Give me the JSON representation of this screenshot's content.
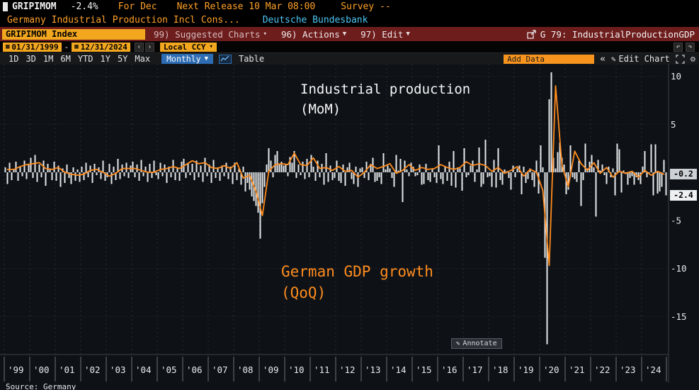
{
  "colors": {
    "amber": "#f2a71f",
    "orange_text": "#ffa028",
    "cyan": "#4dc6f4",
    "maroon": "#6e1d1d",
    "blue": "#2e6db4",
    "bar": "#e5e8ea",
    "line": "#ff8c1e"
  },
  "icons": {
    "caret_down": "▾",
    "caret_down_solid": "▼",
    "calendar": "▦",
    "prev": "‹",
    "next": "›",
    "undo": "↶",
    "redo": "↷",
    "collapse": "«",
    "pencil": "✎",
    "gear": "⚙"
  },
  "header": {
    "ticker": "GRIPIMOM",
    "last_change": "-2.4%",
    "period_label": "For Dec",
    "next_release": "Next Release 10 Mar 08:00",
    "survey": "Survey --",
    "description": "Germany Industrial Production Incl Cons...",
    "source_name": "Deutsche Bundesbank"
  },
  "menu_bar": {
    "security_field": "GRIPIMOM Index",
    "suggested_charts": "99) Suggested Charts",
    "actions": "96) Actions",
    "edit": "97) Edit",
    "chart_id": "G 79: IndustrialProductionGDP"
  },
  "range_bar": {
    "start_date": "01/31/1999",
    "to_separator": "-",
    "end_date": "12/31/2024",
    "currency": "Local CCY"
  },
  "toolbar": {
    "periods": [
      "1D",
      "3D",
      "1M",
      "6M",
      "YTD",
      "1Y",
      "5Y",
      "Max"
    ],
    "frequency": "Monthly",
    "table": "Table",
    "add_data": "Add Data",
    "collapse": "«",
    "edit_chart": "Edit Chart"
  },
  "chart": {
    "annotations": {
      "bars_line1": "Industrial production",
      "bars_line2": "(MoM)",
      "line_line1": "German GDP growth",
      "line_line2": "(QoQ)"
    },
    "annotate_button": "Annotate",
    "last_values": [
      {
        "label": "-0.2",
        "value": -0.2,
        "bg": "#ccd1d6"
      },
      {
        "label": "-2.4",
        "value": -2.4,
        "bg": "#eef0f2"
      }
    ],
    "source": "Source: Germany"
  },
  "chart_data": {
    "type": "bar+line",
    "title": "",
    "xlabel": "",
    "ylabel": "%",
    "ylim": [
      -18.7,
      11.3
    ],
    "x_years": [
      1999,
      2024
    ],
    "x_labels": [
      "'99",
      "'00",
      "'01",
      "'02",
      "'03",
      "'04",
      "'05",
      "'06",
      "'07",
      "'08",
      "'09",
      "'10",
      "'11",
      "'12",
      "'13",
      "'14",
      "'15",
      "'16",
      "'17",
      "'18",
      "'19",
      "'20",
      "'21",
      "'22",
      "'23",
      "'24"
    ],
    "y_ticks": [
      10,
      5,
      -5,
      -10,
      -15
    ],
    "y_grid": [
      10,
      5,
      0,
      -5,
      -10,
      -15
    ],
    "legend_position": "annotations-in-plot",
    "grid": true,
    "series": [
      {
        "name": "Industrial production (MoM)",
        "type": "bar",
        "color": "#e5e8ea",
        "frequency": "monthly",
        "start": "1999-01",
        "last_value": -2.4,
        "values": [
          0.5,
          -1.2,
          1.0,
          -0.8,
          0.3,
          1.1,
          -0.9,
          0.6,
          -0.4,
          1.2,
          -0.7,
          0.9,
          1.5,
          -0.6,
          1.8,
          -1.0,
          0.8,
          -0.5,
          1.2,
          -1.4,
          0.9,
          0.4,
          -0.8,
          1.1,
          -0.9,
          0.7,
          -1.5,
          0.4,
          -1.1,
          0.8,
          -0.6,
          -1.2,
          0.5,
          -0.9,
          0.3,
          -1.0,
          0.6,
          -0.8,
          1.0,
          -0.5,
          0.7,
          -1.1,
          0.9,
          -0.3,
          0.5,
          -0.7,
          1.2,
          -0.9,
          -0.5,
          0.9,
          -1.2,
          0.6,
          -0.8,
          1.4,
          -0.7,
          0.8,
          -0.4,
          1.0,
          -0.6,
          0.7,
          1.1,
          -0.5,
          0.8,
          -0.9,
          1.3,
          -0.4,
          0.6,
          -1.0,
          0.9,
          -0.6,
          1.2,
          -0.3,
          -0.7,
          1.0,
          -0.4,
          0.8,
          -1.1,
          0.6,
          -0.5,
          1.3,
          -0.8,
          0.5,
          -0.9,
          1.1,
          1.4,
          -0.6,
          1.0,
          -0.3,
          0.9,
          -0.8,
          1.2,
          -0.5,
          0.7,
          -1.0,
          1.5,
          -0.4,
          0.8,
          -1.1,
          1.3,
          -0.6,
          0.5,
          -0.9,
          0.7,
          -0.4,
          1.0,
          -0.7,
          0.6,
          -1.2,
          1.0,
          -0.8,
          0.4,
          -1.3,
          0.6,
          -2.0,
          -1.1,
          -1.8,
          -2.5,
          -3.0,
          -3.5,
          -4.2,
          -6.9,
          -3.2,
          -1.5,
          0.8,
          2.5,
          1.2,
          -0.5,
          1.8,
          2.2,
          0.9,
          1.1,
          0.7,
          0.9,
          -0.4,
          1.6,
          1.0,
          2.2,
          -0.6,
          0.8,
          -0.3,
          1.1,
          -0.7,
          1.4,
          -0.5,
          1.8,
          0.6,
          -0.9,
          1.2,
          -0.5,
          0.9,
          -1.3,
          2.0,
          -1.0,
          0.7,
          -0.8,
          -0.6,
          1.2,
          -0.9,
          -1.1,
          0.8,
          -1.4,
          0.5,
          1.0,
          -0.7,
          -1.2,
          0.6,
          -1.5,
          0.4,
          0.5,
          -0.6,
          1.1,
          -0.8,
          0.9,
          1.5,
          -1.0,
          -0.9,
          -0.5,
          -1.2,
          2.0,
          0.3,
          0.7,
          0.4,
          -0.6,
          -1.5,
          1.8,
          0.2,
          1.4,
          -3.1,
          1.2,
          0.3,
          -0.4,
          1.0,
          0.6,
          -0.4,
          -0.3,
          0.8,
          -1.3,
          -1.2,
          0.9,
          -0.8,
          -1.0,
          0.4,
          -0.5,
          -1.1,
          2.8,
          -0.7,
          -1.2,
          0.6,
          -0.9,
          1.1,
          -1.4,
          2.2,
          -1.6,
          0.5,
          0.4,
          -1.9,
          2.5,
          -0.5,
          -0.3,
          0.7,
          1.2,
          -1.0,
          0.3,
          2.6,
          -1.5,
          -1.2,
          3.4,
          -0.5,
          -0.4,
          -1.5,
          1.3,
          -1.6,
          2.5,
          -0.8,
          -1.3,
          0.3,
          0.1,
          -0.6,
          -1.8,
          0.7,
          -0.5,
          0.4,
          0.7,
          -2.3,
          0.6,
          -1.1,
          -0.7,
          0.4,
          -0.8,
          -1.5,
          1.2,
          -2.2,
          2.8,
          0.5,
          -8.9,
          -17.9,
          7.6,
          10.4,
          1.5,
          0.4,
          2.1,
          3.1,
          1.5,
          0.8,
          -2.3,
          -1.8,
          2.8,
          -0.5,
          -0.7,
          -1.0,
          1.2,
          -3.5,
          -0.8,
          3.0,
          0.4,
          1.1,
          1.8,
          0.5,
          -4.6,
          1.3,
          0.2,
          0.8,
          -0.3,
          -1.2,
          0.6,
          -0.5,
          0.4,
          -2.4,
          3.0,
          2.4,
          -2.1,
          0.2,
          -0.2,
          -1.3,
          -0.6,
          -0.4,
          -1.3,
          -0.5,
          -0.8,
          -1.2,
          0.6,
          2.2,
          -0.5,
          -0.1,
          2.9,
          -2.4,
          2.9,
          -2.2,
          -2.0,
          -1.5,
          1.3,
          -2.4
        ]
      },
      {
        "name": "German GDP growth (QoQ)",
        "type": "line",
        "color": "#ff8c1e",
        "frequency": "quarterly",
        "start": "1999-Q1",
        "last_value": -0.2,
        "values": [
          0.3,
          0.3,
          0.6,
          0.8,
          0.9,
          1.0,
          0.4,
          0.3,
          0.5,
          0.0,
          -0.2,
          -0.3,
          -0.2,
          0.2,
          0.3,
          0.0,
          -0.4,
          -0.1,
          0.4,
          0.4,
          0.4,
          0.2,
          0.0,
          0.0,
          0.3,
          0.4,
          0.6,
          0.4,
          0.8,
          1.2,
          0.9,
          1.0,
          0.5,
          0.4,
          0.7,
          0.4,
          1.0,
          -0.6,
          -0.3,
          -2.0,
          -4.5,
          0.1,
          0.8,
          0.9,
          0.8,
          2.0,
          0.8,
          0.7,
          1.5,
          0.4,
          0.5,
          0.2,
          0.6,
          0.1,
          0.2,
          -0.5,
          0.0,
          0.8,
          0.4,
          0.6,
          0.9,
          -0.1,
          0.2,
          0.8,
          0.2,
          0.5,
          0.3,
          0.4,
          0.8,
          0.5,
          0.3,
          0.5,
          1.1,
          0.7,
          0.9,
          0.7,
          0.1,
          0.5,
          -0.1,
          0.2,
          0.6,
          -0.4,
          0.3,
          0.0,
          -1.9,
          -9.7,
          9.0,
          0.7,
          -1.5,
          2.2,
          0.9,
          0.2,
          1.0,
          -0.1,
          0.5,
          -0.5,
          0.1,
          -0.1,
          0.1,
          -0.5,
          0.2,
          -0.3,
          0.1,
          -0.2
        ]
      }
    ]
  }
}
